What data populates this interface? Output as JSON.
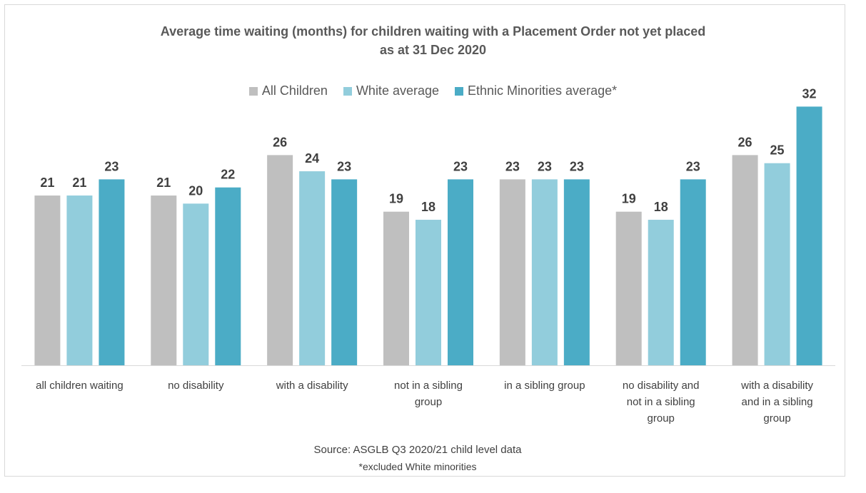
{
  "chart_data": {
    "type": "bar",
    "title": "Average time waiting (months) for children waiting with a Placement Order not yet placed",
    "subtitle": "as at 31 Dec 2020",
    "categories": [
      [
        "all children waiting"
      ],
      [
        "no disability"
      ],
      [
        "with a disability"
      ],
      [
        "not in a sibling",
        "group"
      ],
      [
        "in a sibling group"
      ],
      [
        "no disability and",
        "not in a sibling",
        "group"
      ],
      [
        "with a disability",
        "and in a sibling",
        "group"
      ]
    ],
    "series": [
      {
        "name": "All Children",
        "color": "#bfbfbf",
        "values": [
          21,
          21,
          26,
          19,
          23,
          19,
          26
        ]
      },
      {
        "name": "White average",
        "color": "#92cddc",
        "values": [
          21,
          20,
          24,
          18,
          23,
          18,
          25
        ]
      },
      {
        "name": "Ethnic Minorities average*",
        "color": "#4bacc6",
        "values": [
          23,
          22,
          23,
          23,
          23,
          23,
          32
        ]
      }
    ],
    "ylim": [
      0,
      34
    ],
    "grid": false,
    "legend_position": "top",
    "source": "Source: ASGLB Q3 2020/21 child level data",
    "footnote": "*excluded White minorities"
  }
}
